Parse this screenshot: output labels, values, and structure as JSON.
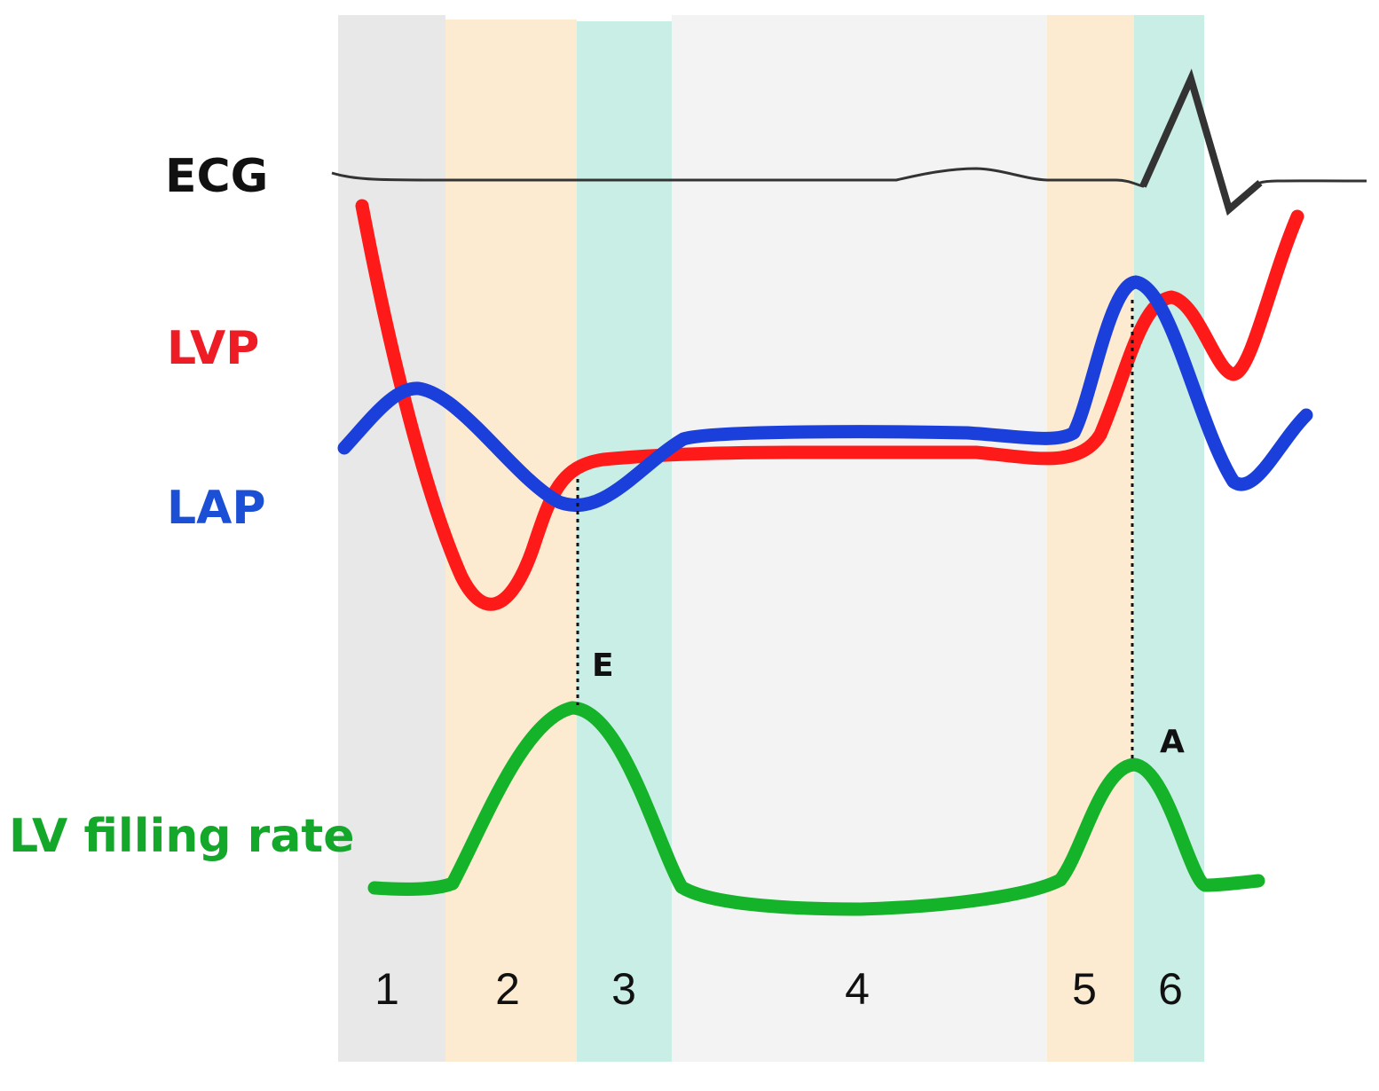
{
  "labels": {
    "ecg": "ECG",
    "lvp": "LVP",
    "lap": "LAP",
    "filling_rate": "LV filling rate"
  },
  "phases": {
    "p1": "1",
    "p2": "2",
    "p3": "3",
    "p4": "4",
    "p5": "5",
    "p6": "6"
  },
  "peaks": {
    "e_wave": "E",
    "a_wave": "A"
  },
  "colors": {
    "ecg": "#333333",
    "lvp": "#ff1a1a",
    "lap": "#1a3fdb",
    "filling": "#14b32a",
    "phase_gray": "#e8e8e8",
    "phase_orange": "#fdebd1",
    "phase_teal": "#c9eee5",
    "phase_light": "#f3f3f3"
  }
}
